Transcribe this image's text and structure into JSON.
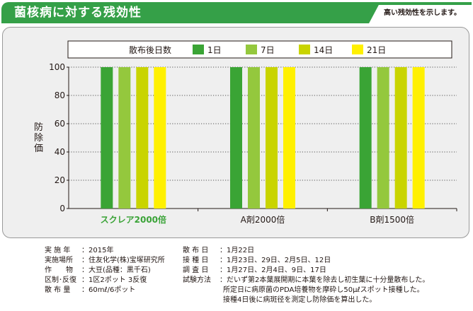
{
  "header": {
    "title": "菌核病に対する残効性",
    "note": "高い残効性を示します。"
  },
  "colors": {
    "brand_green": "#35a048",
    "product_label": "#3aa337",
    "series": [
      "#3aa435",
      "#94c83d",
      "#c9d400",
      "#fff000"
    ]
  },
  "chart_data": {
    "type": "bar",
    "ylabel": "防除価",
    "ylim": [
      0,
      100
    ],
    "yticks": [
      "0",
      "20",
      "40",
      "60",
      "80",
      "100"
    ],
    "grid": true,
    "legend_title": "散布後日数",
    "legend_position": "top",
    "categories": [
      "スクレア2000倍",
      "A剤2000倍",
      "B剤1500倍"
    ],
    "series": [
      {
        "name": "1日",
        "values": [
          100,
          100,
          100
        ]
      },
      {
        "name": "7日",
        "values": [
          100,
          100,
          100
        ]
      },
      {
        "name": "14日",
        "values": [
          100,
          100,
          100
        ]
      },
      {
        "name": "21日",
        "values": [
          100,
          100,
          100
        ]
      }
    ]
  },
  "info_left": [
    {
      "label": "実 施 年",
      "value": "2015年"
    },
    {
      "label": "実施場所",
      "value": "住友化学(株)宝塚研究所"
    },
    {
      "label": "作　　物",
      "value": "大豆(品種：黒千石)"
    },
    {
      "label": "区制･反復",
      "value": "1区2ポット 3反復"
    },
    {
      "label": "散 布 量",
      "value": "60mℓ/6ポット"
    }
  ],
  "info_right": [
    {
      "label": "散 布 日",
      "value": "1月22日"
    },
    {
      "label": "接 種 日",
      "value": "1月23日、29日、2月5日、12日"
    },
    {
      "label": "調 査 日",
      "value": "1月27日、2月4日、9日、17日"
    },
    {
      "label": "試験方法",
      "value": "だいず第2本葉展開期に本葉を除去し初生葉に十分量散布した。"
    }
  ],
  "info_right_continued": [
    "所定日に病原菌のPDA培養物を摩砕し50μℓスポット接種した。",
    "接種4日後に病斑径を測定し防除価を算出した。"
  ]
}
